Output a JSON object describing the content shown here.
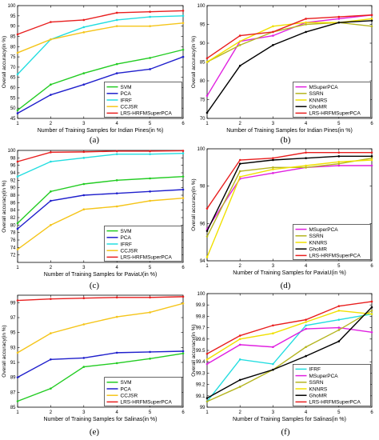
{
  "chart_data": [
    {
      "type": "line",
      "panel": "(a)",
      "xlabel": "Number of Training Samples for Indian Pines(in %)",
      "ylabel": "Overall accuracy(in %)",
      "xlim": [
        1,
        6
      ],
      "ylim": [
        45,
        100
      ],
      "xticks": [
        1,
        2,
        3,
        4,
        5,
        6
      ],
      "yticks": [
        45,
        50,
        55,
        60,
        65,
        70,
        75,
        80,
        85,
        90,
        95,
        100
      ],
      "x": [
        1,
        2,
        3,
        4,
        5,
        6
      ],
      "legend_position": "bottom-right",
      "series": [
        {
          "name": "SVM",
          "color": "#22cc22",
          "values": [
            49,
            61.5,
            67,
            71.5,
            74.5,
            78.5
          ]
        },
        {
          "name": "PCA",
          "color": "#1f1fcc",
          "values": [
            47.5,
            56.5,
            61.5,
            67,
            69,
            75
          ]
        },
        {
          "name": "IFRF",
          "color": "#22dde0",
          "values": [
            66.5,
            83.5,
            89.5,
            93,
            94.5,
            95
          ]
        },
        {
          "name": "CCJSR",
          "color": "#f5c51a",
          "values": [
            77,
            83.5,
            87,
            90,
            90,
            91.5
          ]
        },
        {
          "name": "LRS-HRFMSuperPCA",
          "color": "#e81e1e",
          "values": [
            86,
            92,
            93,
            96.5,
            97,
            97.5
          ]
        }
      ]
    },
    {
      "type": "line",
      "panel": "(b)",
      "xlabel": "Number of Training Samples for Indian Pines(in %)",
      "ylabel": "Overall accuracy(in %)",
      "xlim": [
        1,
        6
      ],
      "ylim": [
        70,
        100
      ],
      "xticks": [
        1,
        2,
        3,
        4,
        5,
        6
      ],
      "yticks": [
        70,
        75,
        80,
        85,
        90,
        95,
        100
      ],
      "x": [
        1,
        2,
        3,
        4,
        5,
        6
      ],
      "legend_position": "bottom-right",
      "series": [
        {
          "name": "MSuperPCA",
          "color": "#e020e0",
          "values": [
            76,
            90.5,
            92,
            95.5,
            96.5,
            97.5
          ]
        },
        {
          "name": "SSRN",
          "color": "#b5b520",
          "values": [
            85,
            89.5,
            93,
            95,
            95.5,
            94.5
          ]
        },
        {
          "name": "KNNRS",
          "color": "#f0e000",
          "values": [
            85,
            90.5,
            94.5,
            95.5,
            95.5,
            96.5
          ]
        },
        {
          "name": "GhoMR",
          "color": "#000000",
          "values": [
            71.5,
            84,
            89.5,
            93,
            95.5,
            96
          ]
        },
        {
          "name": "LRS-HRFMSuperPCA",
          "color": "#e81e1e",
          "values": [
            86,
            92,
            93,
            96.5,
            97,
            97.5
          ]
        }
      ]
    },
    {
      "type": "line",
      "panel": "(c)",
      "xlabel": "Number of Training Samples for PaviaU(in %)",
      "ylabel": "Overall accuracy(in %)",
      "xlim": [
        1,
        6
      ],
      "ylim": [
        70,
        100
      ],
      "xticks": [
        1,
        2,
        3,
        4,
        5,
        6
      ],
      "yticks": [
        72,
        74,
        76,
        78,
        80,
        82,
        84,
        86,
        88,
        90,
        92,
        94,
        96,
        98,
        100
      ],
      "x": [
        1,
        2,
        3,
        4,
        5,
        6
      ],
      "legend_position": "bottom-right",
      "series": [
        {
          "name": "SVM",
          "color": "#22cc22",
          "values": [
            80.5,
            89,
            91,
            92,
            92.5,
            93
          ]
        },
        {
          "name": "PCA",
          "color": "#1f1fcc",
          "values": [
            79,
            86.5,
            88,
            88.5,
            89,
            89.5
          ]
        },
        {
          "name": "IFRF",
          "color": "#22dde0",
          "values": [
            93,
            97,
            98,
            99,
            99,
            99.2
          ]
        },
        {
          "name": "CCJSR",
          "color": "#f5c51a",
          "values": [
            73.5,
            80,
            84.2,
            85,
            86.5,
            87.2
          ]
        },
        {
          "name": "LRS-HRFMSuperPCA",
          "color": "#e81e1e",
          "values": [
            97,
            99.5,
            99.6,
            99.8,
            99.8,
            99.9
          ]
        }
      ]
    },
    {
      "type": "line",
      "panel": "(d)",
      "xlabel": "Number of Training Samples for PaviaU(in %)",
      "ylabel": "Overall accuracy(in %)",
      "xlim": [
        1,
        6
      ],
      "ylim": [
        94,
        100
      ],
      "xticks": [
        1,
        2,
        3,
        4,
        5,
        6
      ],
      "yticks": [
        94,
        96,
        98,
        100
      ],
      "x": [
        1,
        2,
        3,
        4,
        5,
        6
      ],
      "legend_position": "bottom-right",
      "series": [
        {
          "name": "MSuperPCA",
          "color": "#e020e0",
          "values": [
            95.7,
            98.4,
            98.7,
            99,
            99.1,
            99.1
          ]
        },
        {
          "name": "SSRN",
          "color": "#b5b520",
          "values": [
            95.3,
            98.8,
            99.0,
            99.0,
            99.2,
            99.5
          ]
        },
        {
          "name": "KNNRS",
          "color": "#f0e000",
          "values": [
            94.2,
            98.5,
            98.9,
            99.1,
            99.3,
            99.4
          ]
        },
        {
          "name": "GhoMR",
          "color": "#000000",
          "values": [
            95.6,
            99.2,
            99.4,
            99.5,
            99.6,
            99.6
          ]
        },
        {
          "name": "LRS-HRFMSuperPCA",
          "color": "#e81e1e",
          "values": [
            96.8,
            99.4,
            99.5,
            99.8,
            99.8,
            99.8
          ]
        }
      ]
    },
    {
      "type": "line",
      "panel": "(e)",
      "xlabel": "Number of Training Samples for Salinas(in %)",
      "ylabel": "Overall accuracy(in %)",
      "xlim": [
        1,
        6
      ],
      "ylim": [
        85,
        100
      ],
      "xticks": [
        1,
        2,
        3,
        4,
        5,
        6
      ],
      "yticks": [
        85,
        87,
        89,
        91,
        93,
        95,
        97,
        99
      ],
      "x": [
        1,
        2,
        3,
        4,
        5,
        6
      ],
      "legend_position": "bottom-right",
      "series": [
        {
          "name": "SVM",
          "color": "#22cc22",
          "values": [
            85.8,
            87.5,
            90.4,
            90.9,
            91.5,
            92.2
          ]
        },
        {
          "name": "PCA",
          "color": "#1f1fcc",
          "values": [
            89,
            91.4,
            91.6,
            92.3,
            92.4,
            92.5
          ]
        },
        {
          "name": "CCJSR",
          "color": "#f5c51a",
          "values": [
            92.3,
            94.9,
            96.1,
            97.1,
            97.7,
            98.9
          ]
        },
        {
          "name": "LRS-HRFMSuperPCA",
          "color": "#e81e1e",
          "values": [
            99.3,
            99.5,
            99.6,
            99.7,
            99.7,
            99.8
          ]
        }
      ]
    },
    {
      "type": "line",
      "panel": "(f)",
      "xlabel": "Number of Training Samples for Salinas(in %)",
      "ylabel": "Overall accuracy(in %)",
      "xlim": [
        1,
        6
      ],
      "ylim": [
        99,
        100
      ],
      "xticks": [
        1,
        2,
        3,
        4,
        5,
        6
      ],
      "yticks": [
        99,
        99.1,
        99.2,
        99.3,
        99.4,
        99.5,
        99.6,
        99.7,
        99.8,
        99.9,
        100
      ],
      "x": [
        1,
        2,
        3,
        4,
        5,
        6
      ],
      "legend_position": "bottom-right",
      "series": [
        {
          "name": "IFRF",
          "color": "#22dde0",
          "values": [
            99.05,
            99.42,
            99.38,
            99.72,
            99.77,
            99.82
          ]
        },
        {
          "name": "MSuperPCA",
          "color": "#e020e0",
          "values": [
            99.38,
            99.55,
            99.53,
            99.69,
            99.7,
            99.66
          ]
        },
        {
          "name": "SSRN",
          "color": "#b5b520",
          "values": [
            99.05,
            99.18,
            99.33,
            99.53,
            99.68,
            99.85
          ]
        },
        {
          "name": "KNNRS",
          "color": "#f0e000",
          "values": [
            99.42,
            99.6,
            99.65,
            99.75,
            99.85,
            99.82
          ]
        },
        {
          "name": "GhoMR",
          "color": "#000000",
          "values": [
            99.08,
            99.24,
            99.33,
            99.45,
            99.58,
            99.88
          ]
        },
        {
          "name": "LRS-HRFMSuperPCA",
          "color": "#e81e1e",
          "values": [
            99.47,
            99.63,
            99.72,
            99.77,
            99.89,
            99.93
          ]
        }
      ]
    }
  ]
}
